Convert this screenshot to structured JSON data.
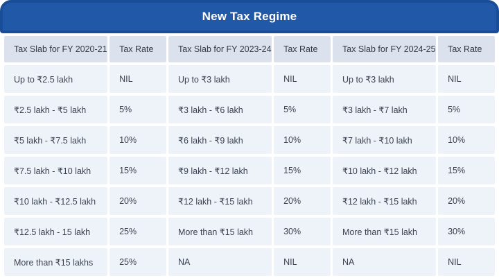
{
  "title": "New Tax Regime",
  "colors": {
    "banner": "#2158a8",
    "banner_border": "#1a4d97",
    "title_text": "#ffffff",
    "header_bg": "#dbe2ee",
    "header_text": "#333b47",
    "cell_bg": "#eef2f9",
    "text": "#3b4350"
  },
  "chart_data": {
    "type": "table",
    "title": "New Tax Regime",
    "columns": [
      {
        "label": "Tax Slab for FY 2020-21",
        "type": "slab"
      },
      {
        "label": "Tax Rate",
        "type": "rate"
      },
      {
        "label": "Tax Slab for FY 2023-24",
        "type": "slab"
      },
      {
        "label": "Tax Rate",
        "type": "rate"
      },
      {
        "label": "Tax Slab for FY 2024-25",
        "type": "slab"
      },
      {
        "label": "Tax Rate",
        "type": "rate"
      }
    ],
    "rows": [
      [
        "Up to ₹2.5 lakh",
        "NIL",
        "Up to ₹3 lakh",
        "NIL",
        "Up to ₹3 lakh",
        "NIL"
      ],
      [
        "₹2.5 lakh - ₹5 lakh",
        "5%",
        "₹3 lakh - ₹6 lakh",
        "5%",
        "₹3 lakh - ₹7 lakh",
        "5%"
      ],
      [
        "₹5 lakh - ₹7.5 lakh",
        "10%",
        "₹6 lakh - ₹9 lakh",
        "10%",
        "₹7 lakh - ₹10 lakh",
        "10%"
      ],
      [
        "₹7.5 lakh - ₹10 lakh",
        "15%",
        "₹9 lakh - ₹12 lakh",
        "15%",
        "₹10 lakh - ₹12 lakh",
        "15%"
      ],
      [
        "₹10 lakh - ₹12.5 lakh",
        "20%",
        "₹12 lakh - ₹15 lakh",
        "20%",
        "₹12 lakh - ₹15 lakh",
        "20%"
      ],
      [
        "₹12.5 lakh - 15 lakh",
        "25%",
        "More than ₹15 lakh",
        "30%",
        "More than ₹15 lakh",
        "30%"
      ],
      [
        "More than ₹15 lakhs",
        "25%",
        "NA",
        "NIL",
        "NA",
        "NIL"
      ]
    ]
  }
}
